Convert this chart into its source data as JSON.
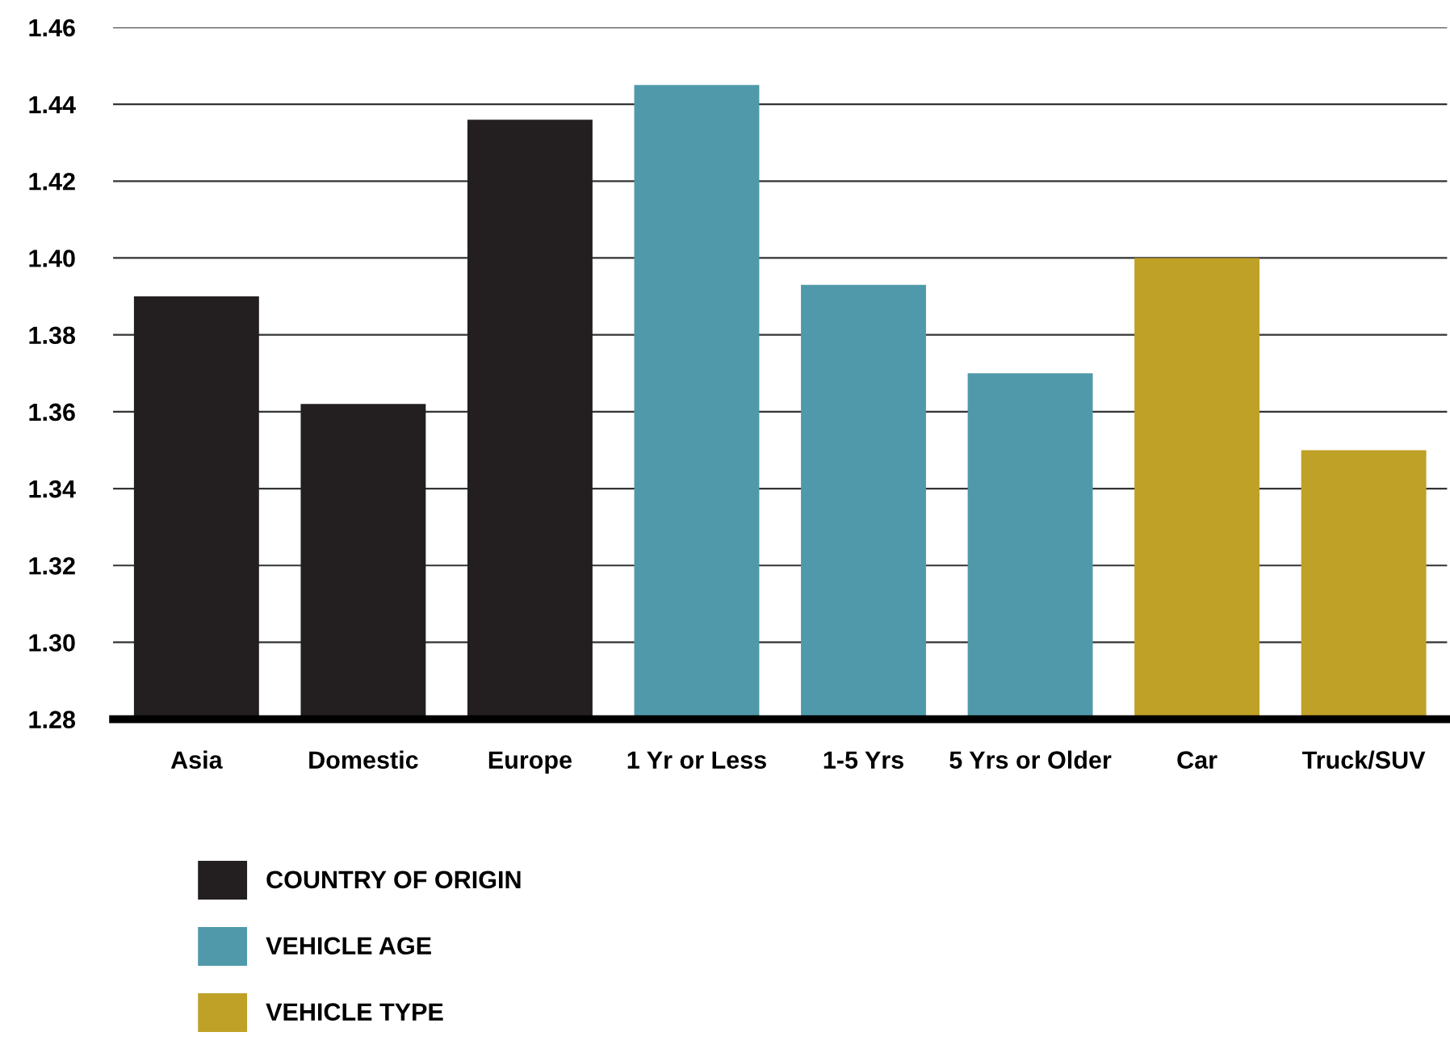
{
  "chart_data": {
    "type": "bar",
    "categories": [
      "Asia",
      "Domestic",
      "Europe",
      "1 Yr or Less",
      "1-5 Yrs",
      "5 Yrs or Older",
      "Car",
      "Truck/SUV"
    ],
    "series": [
      {
        "name": "COUNTRY OF ORIGIN",
        "color": "#231f20",
        "values": [
          1.39,
          1.362,
          1.436,
          null,
          null,
          null,
          null,
          null
        ]
      },
      {
        "name": "VEHICLE AGE",
        "color": "#5099ab",
        "values": [
          null,
          null,
          null,
          1.445,
          1.393,
          1.37,
          null,
          null
        ]
      },
      {
        "name": "VEHICLE TYPE",
        "color": "#bfa127",
        "values": [
          null,
          null,
          null,
          null,
          null,
          null,
          1.4,
          1.35
        ]
      }
    ],
    "ylim": [
      1.28,
      1.46
    ],
    "yticks": [
      {
        "value": 1.28,
        "label": "1.28"
      },
      {
        "value": 1.3,
        "label": "1.30"
      },
      {
        "value": 1.32,
        "label": "1.32"
      },
      {
        "value": 1.34,
        "label": "1.34"
      },
      {
        "value": 1.36,
        "label": "1.36"
      },
      {
        "value": 1.38,
        "label": "1.38"
      },
      {
        "value": 1.4,
        "label": "1.40"
      },
      {
        "value": 1.42,
        "label": "1.42"
      },
      {
        "value": 1.44,
        "label": "1.44"
      },
      {
        "value": 1.46,
        "label": "1.46"
      }
    ],
    "grid": "y",
    "legend": "bottom left"
  }
}
